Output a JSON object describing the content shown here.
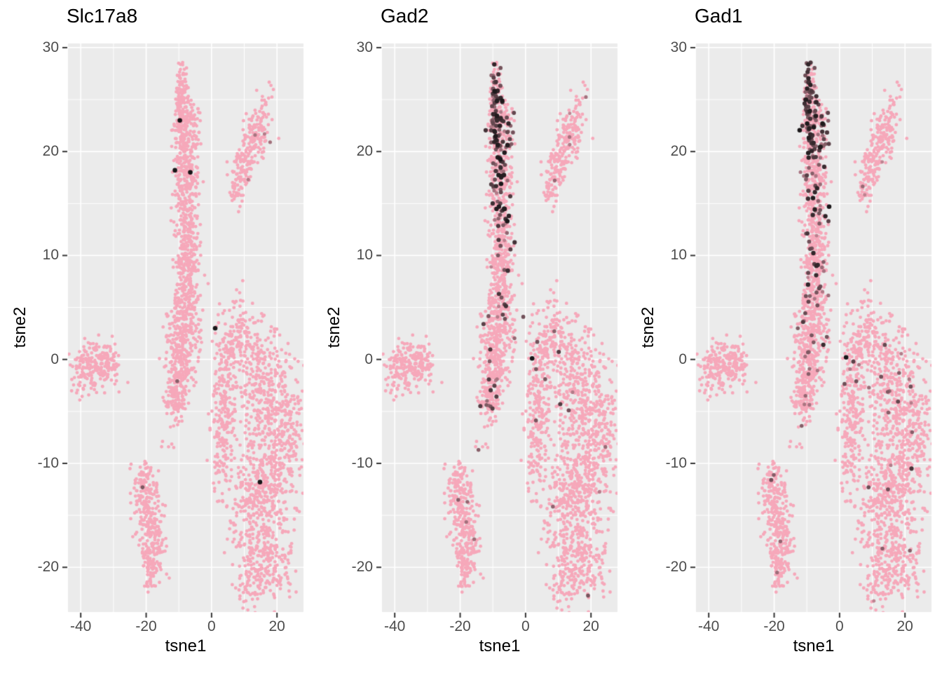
{
  "figure": {
    "background": "#ffffff",
    "kind": "tsne-feature-plot-grid"
  },
  "chart_data": {
    "type": "scatter",
    "layout": "three-side-by-side-panels",
    "xlabel": "tsne1",
    "ylabel": "tsne2",
    "xlim": [
      -43.9,
      28.1
    ],
    "ylim": [
      -24.3,
      30.4
    ],
    "x_ticks": [
      {
        "v": -40,
        "label": "-40"
      },
      {
        "v": -20,
        "label": "-20"
      },
      {
        "v": 0,
        "label": "0"
      },
      {
        "v": 20,
        "label": "20"
      }
    ],
    "y_ticks": [
      {
        "v": 30,
        "label": "30"
      },
      {
        "v": 20,
        "label": "20"
      },
      {
        "v": 10,
        "label": "10"
      },
      {
        "v": 0,
        "label": "0"
      },
      {
        "v": -10,
        "label": "-10"
      },
      {
        "v": -20,
        "label": "-20"
      }
    ],
    "x_minor": [
      -30,
      -10,
      10
    ],
    "y_minor": [
      25,
      15,
      5,
      -5,
      -15
    ],
    "grid": "white major and minor gridlines on grey panel",
    "colors": {
      "point_low": "#F6A8BA",
      "point_high": "#191618",
      "panel_bg": "#EBEBEB",
      "gridline": "#FFFFFF",
      "tick_mark": "#333333",
      "tick_label": "#4D4D4D",
      "title_text": "#000000"
    },
    "seed": 42,
    "gene_seeds": [
      11,
      23,
      37
    ],
    "clusters": [
      {
        "name": "s1",
        "g": "spike",
        "n": 70,
        "x": -9.3,
        "y": 26.3,
        "sx": 0.9,
        "sy": 1.1,
        "r": 0
      },
      {
        "name": "s2",
        "g": "spike",
        "n": 110,
        "x": -8.8,
        "y": 23.6,
        "sx": 1.5,
        "sy": 1.4,
        "r": 0
      },
      {
        "name": "s3",
        "g": "spike",
        "n": 110,
        "x": -8.3,
        "y": 20.6,
        "sx": 1.8,
        "sy": 1.5,
        "r": 0
      },
      {
        "name": "s4",
        "g": "spike",
        "n": 100,
        "x": -7.9,
        "y": 17.6,
        "sx": 1.9,
        "sy": 1.5,
        "r": 0
      },
      {
        "name": "s5",
        "g": "spike",
        "n": 100,
        "x": -7.7,
        "y": 14.6,
        "sx": 1.9,
        "sy": 1.5,
        "r": 0
      },
      {
        "name": "s6",
        "g": "spike",
        "n": 100,
        "x": -7.6,
        "y": 11.6,
        "sx": 1.9,
        "sy": 1.5,
        "r": 0
      },
      {
        "name": "s7",
        "g": "spike",
        "n": 100,
        "x": -7.5,
        "y": 8.6,
        "sx": 1.9,
        "sy": 1.5,
        "r": 0
      },
      {
        "name": "s8",
        "g": "spike",
        "n": 90,
        "x": -7.4,
        "y": 6.1,
        "sx": 2.0,
        "sy": 1.3,
        "r": 0
      },
      {
        "name": "s9",
        "g": "spike",
        "n": 25,
        "x": -4.7,
        "y": 22.8,
        "sx": 0.75,
        "sy": 0.95,
        "r": 0
      },
      {
        "name": "m1",
        "g": "mid",
        "n": 130,
        "x": -8.6,
        "y": 3.4,
        "sx": 2.6,
        "sy": 1.3,
        "r": 0
      },
      {
        "name": "m2",
        "g": "mid",
        "n": 130,
        "x": -9.1,
        "y": 0.5,
        "sx": 2.3,
        "sy": 1.5,
        "r": 0
      },
      {
        "name": "m3",
        "g": "mid",
        "n": 120,
        "x": -10.1,
        "y": -2.4,
        "sx": 1.8,
        "sy": 1.4,
        "r": 0
      },
      {
        "name": "m4",
        "g": "mid",
        "n": 60,
        "x": -11.2,
        "y": -4.4,
        "sx": 1.5,
        "sy": 0.9,
        "r": 0
      },
      {
        "name": "o1",
        "g": "mid",
        "n": 5,
        "x": -13.8,
        "y": -8.2,
        "sx": 1.2,
        "sy": 0.8,
        "r": 0
      },
      {
        "name": "l1",
        "g": "left",
        "n": 205,
        "x": -35.9,
        "y": -0.6,
        "sx": 3.5,
        "sy": 1.1,
        "r": 0
      },
      {
        "name": "l2",
        "g": "left",
        "n": 30,
        "x": -31.4,
        "y": 0.2,
        "sx": 1.5,
        "sy": 0.8,
        "r": 0
      },
      {
        "name": "l3",
        "g": "left",
        "n": 8,
        "x": -39.8,
        "y": -3.2,
        "sx": 1.1,
        "sy": 0.7,
        "r": 0
      },
      {
        "name": "t1",
        "g": "topright",
        "n": 95,
        "x": 14.3,
        "y": 22.2,
        "sx": 2.3,
        "sy": 1.4,
        "r": 30
      },
      {
        "name": "t2",
        "g": "topright",
        "n": 80,
        "x": 11.2,
        "y": 20.0,
        "sx": 2.2,
        "sy": 1.2,
        "r": 35
      },
      {
        "name": "t3",
        "g": "topright",
        "n": 60,
        "x": 8.5,
        "y": 17.9,
        "sx": 1.6,
        "sy": 1.1,
        "r": 40
      },
      {
        "name": "t4",
        "g": "topright",
        "n": 15,
        "x": 7.3,
        "y": 16.3,
        "sx": 0.8,
        "sy": 0.7,
        "r": 0
      },
      {
        "name": "q1",
        "g": "leaf",
        "n": 55,
        "x": -20.4,
        "y": -11.6,
        "sx": 1.3,
        "sy": 1.0,
        "r": 0
      },
      {
        "name": "q2",
        "g": "leaf",
        "n": 115,
        "x": -19.6,
        "y": -14.4,
        "sx": 2.5,
        "sy": 1.6,
        "r": -20
      },
      {
        "name": "q3",
        "g": "leaf",
        "n": 110,
        "x": -18.4,
        "y": -16.9,
        "sx": 2.3,
        "sy": 1.5,
        "r": -20
      },
      {
        "name": "q4",
        "g": "leaf",
        "n": 60,
        "x": -18.6,
        "y": -19.4,
        "sx": 1.5,
        "sy": 1.2,
        "r": 0
      },
      {
        "name": "q5",
        "g": "leaf",
        "n": 15,
        "x": -18.9,
        "y": -21.2,
        "sx": 0.8,
        "sy": 0.6,
        "r": 0
      },
      {
        "name": "b1",
        "g": "big",
        "n": 170,
        "x": 7.6,
        "y": 1.8,
        "sx": 3.4,
        "sy": 1.9,
        "r": 0
      },
      {
        "name": "b2",
        "g": "big",
        "n": 130,
        "x": 3.9,
        "y": -3.4,
        "sx": 2.0,
        "sy": 2.4,
        "r": 0
      },
      {
        "name": "b3",
        "g": "big",
        "n": 90,
        "x": 3.2,
        "y": -8.6,
        "sx": 1.8,
        "sy": 2.1,
        "r": 0
      },
      {
        "name": "b4",
        "g": "big",
        "n": 260,
        "x": 16.4,
        "y": -2.6,
        "sx": 4.2,
        "sy": 2.6,
        "r": 0
      },
      {
        "name": "b5",
        "g": "big",
        "n": 300,
        "x": 19.0,
        "y": -9.0,
        "sx": 4.0,
        "sy": 3.4,
        "r": 0
      },
      {
        "name": "b6",
        "g": "big",
        "n": 280,
        "x": 13.6,
        "y": -14.4,
        "sx": 4.2,
        "sy": 3.2,
        "r": 0
      },
      {
        "name": "b7",
        "g": "big",
        "n": 200,
        "x": 17.0,
        "y": -19.0,
        "sx": 3.6,
        "sy": 2.2,
        "r": 0
      },
      {
        "name": "b8",
        "g": "big",
        "n": 60,
        "x": 24.8,
        "y": -6.0,
        "sx": 1.5,
        "sy": 3.0,
        "r": 0
      },
      {
        "name": "b9",
        "g": "big",
        "n": 40,
        "x": 11.2,
        "y": -21.4,
        "sx": 2.0,
        "sy": 1.2,
        "r": 0
      }
    ],
    "panels": [
      {
        "title": "Slc17a8",
        "expression": {
          "rules": [],
          "points": [
            [
              -9.7,
              23.0,
              1
            ],
            [
              -11.2,
              18.2,
              1
            ],
            [
              -6.5,
              18.0,
              1
            ],
            [
              1.1,
              3.0,
              1
            ],
            [
              14.8,
              -11.8,
              1
            ],
            [
              -21.1,
              -12.3,
              0.55
            ],
            [
              -10.5,
              -2.1,
              0.5
            ],
            [
              13.3,
              21.6,
              0.35
            ],
            [
              17.9,
              20.9,
              0.38
            ],
            [
              11.2,
              17.3,
              0.3
            ],
            [
              16.2,
              21.7,
              0.3
            ]
          ]
        }
      },
      {
        "title": "Gad2",
        "expression": {
          "rules": [
            {
              "g": "spike",
              "ymin": 20,
              "p": 0.3,
              "t0": 0.3,
              "t1": 1.0
            },
            {
              "g": "spike",
              "ymin": 13,
              "p": 0.18,
              "t0": 0.3,
              "t1": 1.0
            },
            {
              "g": "spike",
              "p": 0.055,
              "t0": 0.25,
              "t1": 0.85
            },
            {
              "g": "mid",
              "p": 0.035,
              "t0": 0.25,
              "t1": 0.8
            },
            {
              "g": "big",
              "ymin": -6,
              "p": 0.012,
              "t0": 0.25,
              "t1": 0.8
            },
            {
              "g": "big",
              "p": 0.004,
              "t0": 0.25,
              "t1": 0.7
            },
            {
              "g": "leaf",
              "p": 0.005,
              "t0": 0.3,
              "t1": 0.6
            },
            {
              "g": "topright",
              "p": 0.008,
              "t0": 0.2,
              "t1": 0.5
            },
            {
              "g": "left",
              "p": 0.002,
              "t0": 0.2,
              "t1": 0.4
            }
          ],
          "points": [
            [
              -5.6,
              13.3,
              1
            ],
            [
              2.0,
              0.1,
              1
            ],
            [
              10.6,
              -4.3,
              0.75
            ],
            [
              13.2,
              -4.9,
              0.6
            ],
            [
              6.0,
              -1.9,
              0.55
            ],
            [
              -0.7,
              4.1,
              0.6
            ],
            [
              -20.6,
              -13.5,
              0.5
            ],
            [
              -14.4,
              -8.7,
              0.5
            ],
            [
              -17.8,
              -13.7,
              0.45
            ],
            [
              -15.7,
              -17.3,
              0.4
            ]
          ]
        }
      },
      {
        "title": "Gad1",
        "expression": {
          "rules": [
            {
              "g": "spike",
              "ymin": 20,
              "p": 0.33,
              "t0": 0.3,
              "t1": 1.0
            },
            {
              "g": "spike",
              "ymin": 13,
              "p": 0.2,
              "t0": 0.3,
              "t1": 1.0
            },
            {
              "g": "spike",
              "p": 0.065,
              "t0": 0.25,
              "t1": 0.9
            },
            {
              "g": "mid",
              "p": 0.05,
              "t0": 0.25,
              "t1": 0.85
            },
            {
              "g": "big",
              "ymin": -6,
              "p": 0.014,
              "t0": 0.25,
              "t1": 0.8
            },
            {
              "g": "big",
              "p": 0.005,
              "t0": 0.25,
              "t1": 0.7
            },
            {
              "g": "leaf",
              "p": 0.007,
              "t0": 0.3,
              "t1": 0.6
            },
            {
              "g": "topright",
              "p": 0.008,
              "t0": 0.2,
              "t1": 0.5
            },
            {
              "g": "left",
              "p": 0.002,
              "t0": 0.2,
              "t1": 0.4
            }
          ],
          "points": [
            [
              -3.2,
              14.7,
              1
            ],
            [
              -3.4,
              13.3,
              0.7
            ],
            [
              2.0,
              0.2,
              1
            ],
            [
              4.2,
              -0.2,
              0.7
            ],
            [
              5.1,
              -2.1,
              0.6
            ],
            [
              22.0,
              -10.5,
              0.8
            ],
            [
              14.8,
              -12.5,
              0.6
            ],
            [
              13.1,
              -18.2,
              0.5
            ],
            [
              21.5,
              -18.4,
              0.5
            ],
            [
              -18.1,
              -17.5,
              0.45
            ],
            [
              -20.9,
              -11.6,
              0.6
            ],
            [
              -19.1,
              -20.5,
              0.4
            ],
            [
              -10.3,
              6.1,
              0.6
            ],
            [
              -9.5,
              -1.4,
              0.5
            ]
          ]
        }
      }
    ]
  }
}
